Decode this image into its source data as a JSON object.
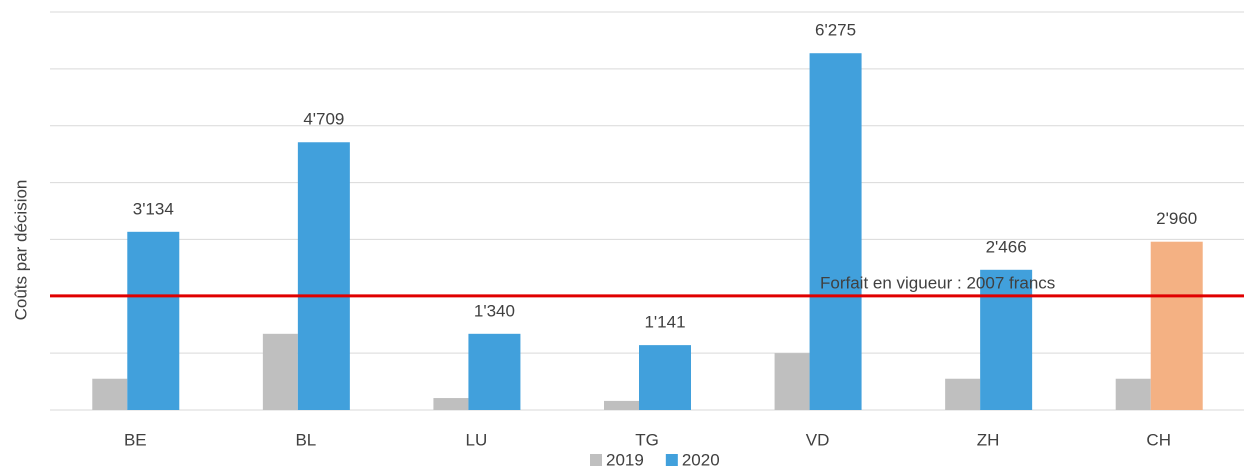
{
  "chart_data": {
    "type": "bar",
    "y_label": "Coûts par décision",
    "categories": [
      "BE",
      "BL",
      "LU",
      "TG",
      "VD",
      "ZH",
      "CH"
    ],
    "series": [
      {
        "name": "2019",
        "color": "#bfbfbf",
        "values": [
          550,
          1340,
          210,
          160,
          1000,
          550,
          550
        ]
      },
      {
        "name": "2020",
        "color": "#41a0dc",
        "values": [
          3134,
          4709,
          1340,
          1141,
          6275,
          2466,
          2960
        ],
        "value_labels": [
          "3'134",
          "4'709",
          "1'340",
          "1'141",
          "6'275",
          "2'466",
          "2'960"
        ],
        "colors": [
          "#41a0dc",
          "#41a0dc",
          "#41a0dc",
          "#41a0dc",
          "#41a0dc",
          "#41a0dc",
          "#f4b183"
        ]
      }
    ],
    "reference_line": {
      "value": 2007,
      "color": "#e00000",
      "label": "Forfait en vigueur : 2007  francs"
    },
    "ylim": [
      0,
      7000
    ],
    "yticks": [
      0,
      1000,
      2000,
      3000,
      4000,
      5000,
      6000,
      7000
    ],
    "grid": true,
    "legend": "bottom"
  }
}
